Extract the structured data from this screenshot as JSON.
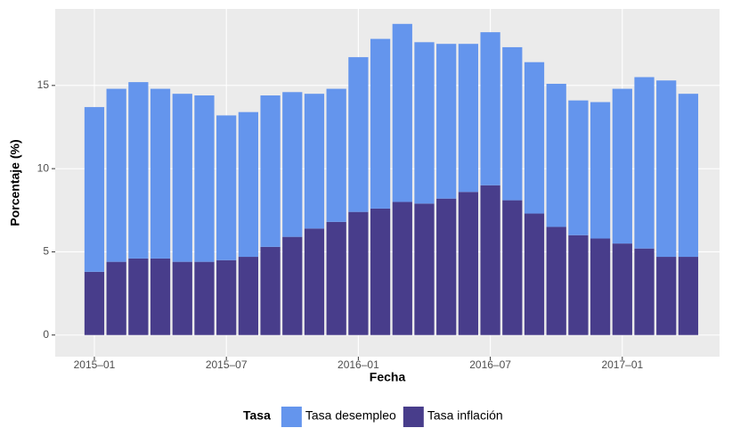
{
  "chart_data": {
    "type": "bar",
    "stacked": true,
    "x_label": "Fecha",
    "y_label": "Porcentaje (%)",
    "legend_title": "Tasa",
    "legend_position": "bottom",
    "categories": [
      "2015–01",
      null,
      null,
      null,
      null,
      null,
      "2015–07",
      null,
      null,
      null,
      null,
      null,
      "2016–01",
      null,
      null,
      null,
      null,
      null,
      "2016–07",
      null,
      null,
      null,
      null,
      null,
      "2017–01",
      null,
      null,
      null
    ],
    "series": [
      {
        "name": "Tasa desempleo",
        "color": "#6495ED",
        "values": [
          9.9,
          10.4,
          10.6,
          10.2,
          10.1,
          10.0,
          8.7,
          8.7,
          9.1,
          8.7,
          8.1,
          8.0,
          9.3,
          10.2,
          10.7,
          9.7,
          9.3,
          8.9,
          9.2,
          9.2,
          9.1,
          8.6,
          8.1,
          8.2,
          9.3,
          10.3,
          10.6,
          9.8
        ]
      },
      {
        "name": "Tasa inflación",
        "color": "#483D8B",
        "values": [
          3.8,
          4.4,
          4.6,
          4.6,
          4.4,
          4.4,
          4.5,
          4.7,
          5.3,
          5.9,
          6.4,
          6.8,
          7.4,
          7.6,
          8.0,
          7.9,
          8.2,
          8.6,
          9.0,
          8.1,
          7.3,
          6.5,
          6.0,
          5.8,
          5.5,
          5.2,
          4.7,
          4.7
        ]
      }
    ],
    "stack_order": [
      1,
      0
    ],
    "ylim": [
      -1.3,
      19.6
    ],
    "yticks": [
      0,
      5,
      10,
      15
    ],
    "grid": true
  }
}
